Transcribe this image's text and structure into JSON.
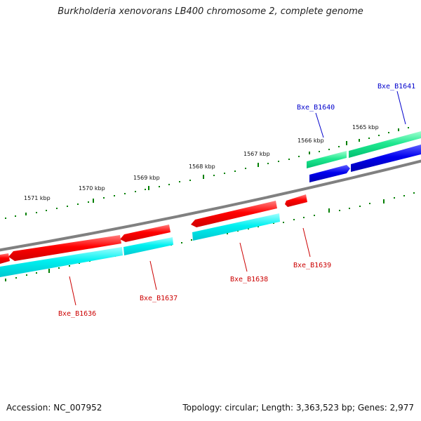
{
  "title": "Burkholderia xenovorans LB400 chromosome 2, complete genome",
  "footer": {
    "accession": "Accession: NC_007952",
    "stats": "Topology: circular; Length: 3,363,523 bp; Genes: 2,977"
  },
  "colors": {
    "backbone": "#808080",
    "tick": "#008000",
    "reverse_gene": "#ff0000",
    "reverse_gene_track2": "#00ffff",
    "forward_gene": "#0000ff",
    "forward_gene_track2": "#00ee88",
    "reverse_label": "#cc0000",
    "forward_label": "#0000cc"
  },
  "scale": {
    "unit": "kbp",
    "labels": [
      "1565 kbp",
      "1566 kbp",
      "1567 kbp",
      "1568 kbp",
      "1569 kbp",
      "1570 kbp",
      "1571 kbp"
    ]
  },
  "genes": [
    {
      "name": "Bxe_B1641",
      "strand": "forward"
    },
    {
      "name": "Bxe_B1640",
      "strand": "forward"
    },
    {
      "name": "Bxe_B1639",
      "strand": "reverse"
    },
    {
      "name": "Bxe_B1638",
      "strand": "reverse"
    },
    {
      "name": "Bxe_B1637",
      "strand": "reverse"
    },
    {
      "name": "Bxe_B1636",
      "strand": "reverse"
    }
  ]
}
